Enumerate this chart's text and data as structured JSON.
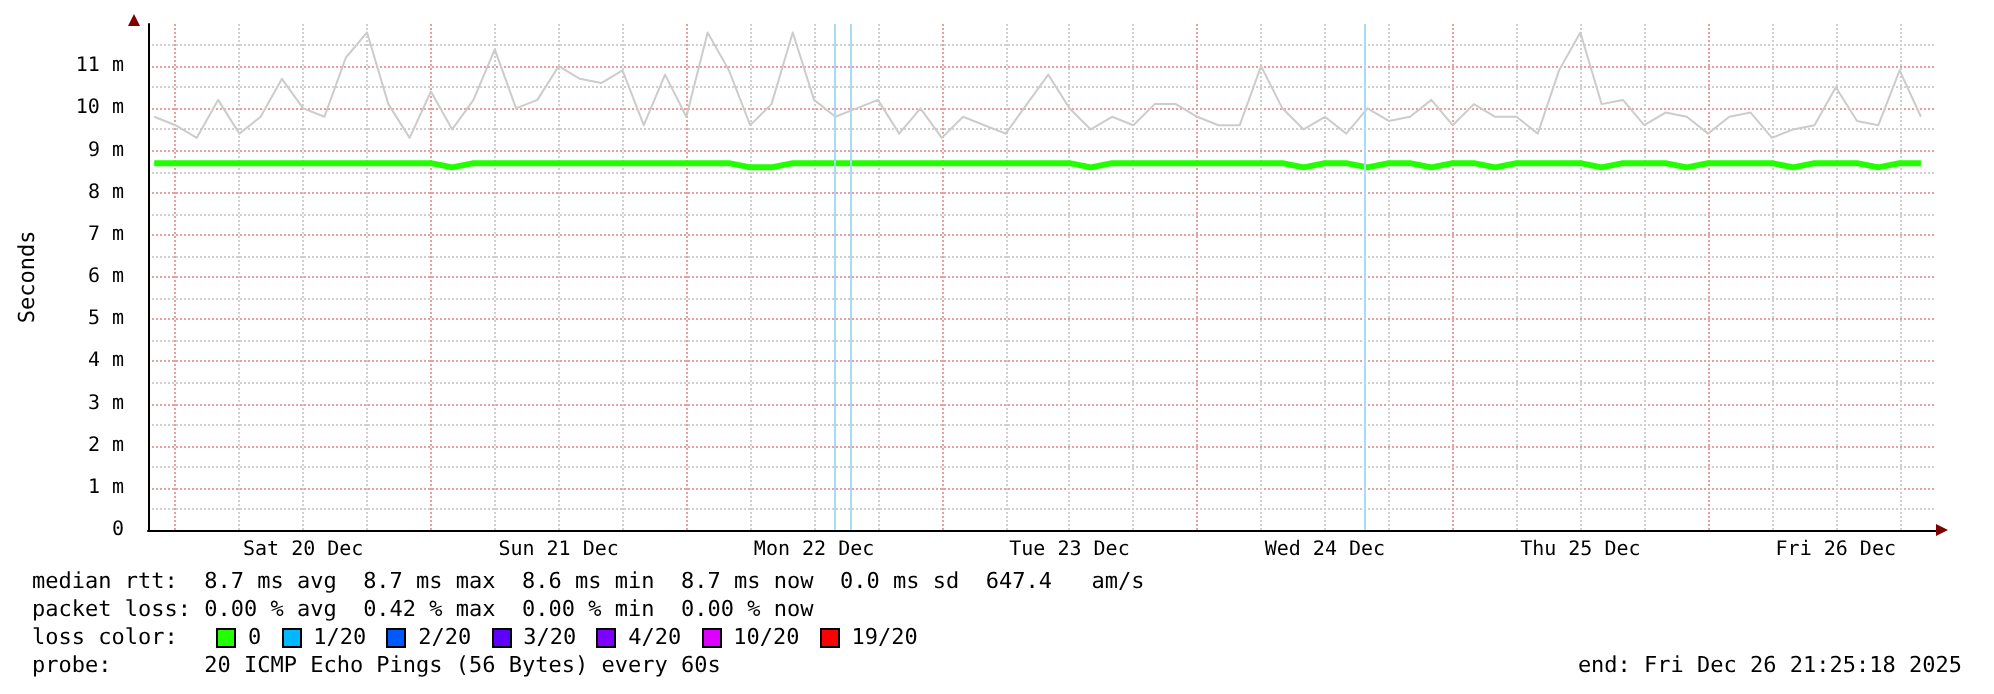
{
  "chart_data": {
    "type": "line",
    "ylabel": "Seconds",
    "legend_title": "loss color:",
    "legend": "bottom",
    "grid": true,
    "marker": "none",
    "annotations": [
      "median rtt:  8.7 ms avg  8.7 ms max  8.6 ms min  8.7 ms now  0.0 ms sd  647.4   am/s",
      "packet loss: 0.00 % avg  0.42 % max  0.00 % min  0.00 % now",
      "probe:       20 ICMP Echo Pings (56 Bytes) every 60s",
      "end: Fri Dec 26 21:25:18 2025"
    ],
    "xlim": [
      "2025-12-19T21:25",
      "2025-12-26T21:25"
    ],
    "xticks": [
      {
        "value": "2025-12-20T00:00",
        "label": null
      },
      {
        "value": "2025-12-20T06:00",
        "label": null
      },
      {
        "value": "2025-12-20T12:00",
        "label": "Sat 20 Dec"
      },
      {
        "value": "2025-12-20T18:00",
        "label": null
      },
      {
        "value": "2025-12-21T00:00",
        "label": null
      },
      {
        "value": "2025-12-21T06:00",
        "label": null
      },
      {
        "value": "2025-12-21T12:00",
        "label": "Sun 21 Dec"
      },
      {
        "value": "2025-12-21T18:00",
        "label": null
      },
      {
        "value": "2025-12-22T00:00",
        "label": null
      },
      {
        "value": "2025-12-22T06:00",
        "label": null
      },
      {
        "value": "2025-12-22T12:00",
        "label": "Mon 22 Dec"
      },
      {
        "value": "2025-12-22T18:00",
        "label": null
      },
      {
        "value": "2025-12-23T00:00",
        "label": null
      },
      {
        "value": "2025-12-23T06:00",
        "label": null
      },
      {
        "value": "2025-12-23T12:00",
        "label": "Tue 23 Dec"
      },
      {
        "value": "2025-12-23T18:00",
        "label": null
      },
      {
        "value": "2025-12-24T00:00",
        "label": null
      },
      {
        "value": "2025-12-24T06:00",
        "label": null
      },
      {
        "value": "2025-12-24T12:00",
        "label": "Wed 24 Dec"
      },
      {
        "value": "2025-12-24T18:00",
        "label": null
      },
      {
        "value": "2025-12-25T00:00",
        "label": null
      },
      {
        "value": "2025-12-25T06:00",
        "label": null
      },
      {
        "value": "2025-12-25T12:00",
        "label": "Thu 25 Dec"
      },
      {
        "value": "2025-12-25T18:00",
        "label": null
      },
      {
        "value": "2025-12-26T00:00",
        "label": null
      },
      {
        "value": "2025-12-26T06:00",
        "label": null
      },
      {
        "value": "2025-12-26T12:00",
        "label": "Fri 26 Dec"
      },
      {
        "value": "2025-12-26T18:00",
        "label": null
      }
    ],
    "ylim": [
      0,
      12
    ],
    "yticks": [
      {
        "value": 0,
        "label": "0"
      },
      {
        "value": 0.5,
        "label": null
      },
      {
        "value": 1,
        "label": "1 m"
      },
      {
        "value": 1.5,
        "label": null
      },
      {
        "value": 2,
        "label": "2 m"
      },
      {
        "value": 2.5,
        "label": null
      },
      {
        "value": 3,
        "label": "3 m"
      },
      {
        "value": 3.5,
        "label": null
      },
      {
        "value": 4,
        "label": "4 m"
      },
      {
        "value": 4.5,
        "label": null
      },
      {
        "value": 5,
        "label": "5 m"
      },
      {
        "value": 5.5,
        "label": null
      },
      {
        "value": 6,
        "label": "6 m"
      },
      {
        "value": 6.5,
        "label": null
      },
      {
        "value": 7,
        "label": "7 m"
      },
      {
        "value": 7.5,
        "label": null
      },
      {
        "value": 8,
        "label": "8 m"
      },
      {
        "value": 8.5,
        "label": null
      },
      {
        "value": 9,
        "label": "9 m"
      },
      {
        "value": 9.5,
        "label": null
      },
      {
        "value": 10,
        "label": "10 m"
      },
      {
        "value": 10.5,
        "label": null
      },
      {
        "value": 11,
        "label": "11 m"
      },
      {
        "value": 11.5,
        "label": null
      }
    ],
    "x": [
      "2025-12-19T22:00",
      "2025-12-20T00:00",
      "2025-12-20T02:00",
      "2025-12-20T04:00",
      "2025-12-20T06:00",
      "2025-12-20T08:00",
      "2025-12-20T10:00",
      "2025-12-20T12:00",
      "2025-12-20T14:00",
      "2025-12-20T16:00",
      "2025-12-20T18:00",
      "2025-12-20T20:00",
      "2025-12-20T22:00",
      "2025-12-21T00:00",
      "2025-12-21T02:00",
      "2025-12-21T04:00",
      "2025-12-21T06:00",
      "2025-12-21T08:00",
      "2025-12-21T10:00",
      "2025-12-21T12:00",
      "2025-12-21T14:00",
      "2025-12-21T16:00",
      "2025-12-21T18:00",
      "2025-12-21T20:00",
      "2025-12-21T22:00",
      "2025-12-22T00:00",
      "2025-12-22T02:00",
      "2025-12-22T04:00",
      "2025-12-22T06:00",
      "2025-12-22T08:00",
      "2025-12-22T10:00",
      "2025-12-22T12:00",
      "2025-12-22T14:00",
      "2025-12-22T16:00",
      "2025-12-22T18:00",
      "2025-12-22T20:00",
      "2025-12-22T22:00",
      "2025-12-23T00:00",
      "2025-12-23T02:00",
      "2025-12-23T04:00",
      "2025-12-23T06:00",
      "2025-12-23T08:00",
      "2025-12-23T10:00",
      "2025-12-23T12:00",
      "2025-12-23T14:00",
      "2025-12-23T16:00",
      "2025-12-23T18:00",
      "2025-12-23T20:00",
      "2025-12-23T22:00",
      "2025-12-24T00:00",
      "2025-12-24T02:00",
      "2025-12-24T04:00",
      "2025-12-24T06:00",
      "2025-12-24T08:00",
      "2025-12-24T10:00",
      "2025-12-24T12:00",
      "2025-12-24T14:00",
      "2025-12-24T16:00",
      "2025-12-24T18:00",
      "2025-12-24T20:00",
      "2025-12-24T22:00",
      "2025-12-25T00:00",
      "2025-12-25T02:00",
      "2025-12-25T04:00",
      "2025-12-25T06:00",
      "2025-12-25T08:00",
      "2025-12-25T10:00",
      "2025-12-25T12:00",
      "2025-12-25T14:00",
      "2025-12-25T16:00",
      "2025-12-25T18:00",
      "2025-12-25T20:00",
      "2025-12-25T22:00",
      "2025-12-26T00:00",
      "2025-12-26T02:00",
      "2025-12-26T04:00",
      "2025-12-26T06:00",
      "2025-12-26T08:00",
      "2025-12-26T10:00",
      "2025-12-26T12:00",
      "2025-12-26T14:00",
      "2025-12-26T16:00",
      "2025-12-26T18:00",
      "2025-12-26T20:00"
    ],
    "series": [
      {
        "color": "#cccccc",
        "values": [
          9.8,
          9.6,
          9.3,
          10.2,
          9.4,
          9.8,
          10.7,
          10.0,
          9.8,
          11.2,
          11.8,
          10.1,
          9.3,
          10.4,
          9.5,
          10.2,
          11.4,
          10.0,
          10.2,
          11.0,
          10.7,
          10.6,
          10.9,
          9.6,
          10.8,
          9.8,
          11.8,
          10.9,
          9.6,
          10.1,
          11.8,
          10.2,
          9.8,
          10.0,
          10.2,
          9.4,
          10.0,
          9.3,
          9.8,
          9.6,
          9.4,
          10.1,
          10.8,
          10.0,
          9.5,
          9.8,
          9.6,
          10.1,
          10.1,
          9.8,
          9.6,
          9.6,
          11.0,
          10.0,
          9.5,
          9.8,
          9.4,
          10.0,
          9.7,
          9.8,
          10.2,
          9.6,
          10.1,
          9.8,
          9.8,
          9.4,
          10.9,
          11.8,
          10.1,
          10.2,
          9.6,
          9.9,
          9.8,
          9.4,
          9.8,
          9.9,
          9.3,
          9.5,
          9.6,
          10.5,
          9.7,
          9.6,
          10.9,
          9.8
        ]
      },
      {
        "name": "0",
        "color": "#22ff00",
        "values": [
          8.7,
          8.7,
          8.7,
          8.7,
          8.7,
          8.7,
          8.7,
          8.7,
          8.7,
          8.7,
          8.7,
          8.7,
          8.7,
          8.7,
          8.6,
          8.7,
          8.7,
          8.7,
          8.7,
          8.7,
          8.7,
          8.7,
          8.7,
          8.7,
          8.7,
          8.7,
          8.7,
          8.7,
          8.6,
          8.6,
          8.7,
          8.7,
          8.7,
          8.7,
          8.7,
          8.7,
          8.7,
          8.7,
          8.7,
          8.7,
          8.7,
          8.7,
          8.7,
          8.7,
          8.6,
          8.7,
          8.7,
          8.7,
          8.7,
          8.7,
          8.7,
          8.7,
          8.7,
          8.7,
          8.6,
          8.7,
          8.7,
          8.6,
          8.7,
          8.7,
          8.6,
          8.7,
          8.7,
          8.6,
          8.7,
          8.7,
          8.7,
          8.7,
          8.6,
          8.7,
          8.7,
          8.7,
          8.6,
          8.7,
          8.7,
          8.7,
          8.7,
          8.6,
          8.7,
          8.7,
          8.7,
          8.6,
          8.7,
          8.7
        ]
      },
      {
        "name": "1/20",
        "color": "#00b8ff",
        "values": [
          null,
          null,
          null,
          null,
          null,
          null,
          null,
          null,
          null,
          null,
          null,
          null,
          null,
          null,
          null,
          null,
          null,
          null,
          null,
          null,
          null,
          null,
          null,
          null,
          null,
          null,
          null,
          null,
          null,
          null,
          null,
          null,
          null,
          null,
          null,
          null,
          null,
          null,
          null,
          null,
          null,
          null,
          null,
          null,
          null,
          null,
          null,
          null,
          null,
          null,
          null,
          null,
          null,
          null,
          null,
          null,
          null,
          null,
          null,
          null,
          null,
          null,
          null,
          null,
          null,
          null,
          null,
          null,
          null,
          null,
          null,
          null,
          null,
          null,
          null,
          null,
          null,
          null,
          null,
          null,
          null,
          null,
          null,
          null
        ]
      },
      {
        "name": "2/20",
        "color": "#0059ff",
        "values": [
          null,
          null,
          null,
          null,
          null,
          null,
          null,
          null,
          null,
          null,
          null,
          null,
          null,
          null,
          null,
          null,
          null,
          null,
          null,
          null,
          null,
          null,
          null,
          null,
          null,
          null,
          null,
          null,
          null,
          null,
          null,
          null,
          null,
          null,
          null,
          null,
          null,
          null,
          null,
          null,
          null,
          null,
          null,
          null,
          null,
          null,
          null,
          null,
          null,
          null,
          null,
          null,
          null,
          null,
          null,
          null,
          null,
          null,
          null,
          null,
          null,
          null,
          null,
          null,
          null,
          null,
          null,
          null,
          null,
          null,
          null,
          null,
          null,
          null,
          null,
          null,
          null,
          null,
          null,
          null,
          null,
          null,
          null,
          null
        ]
      },
      {
        "name": "3/20",
        "color": "#5e00ff",
        "values": [
          null,
          null,
          null,
          null,
          null,
          null,
          null,
          null,
          null,
          null,
          null,
          null,
          null,
          null,
          null,
          null,
          null,
          null,
          null,
          null,
          null,
          null,
          null,
          null,
          null,
          null,
          null,
          null,
          null,
          null,
          null,
          null,
          null,
          null,
          null,
          null,
          null,
          null,
          null,
          null,
          null,
          null,
          null,
          null,
          null,
          null,
          null,
          null,
          null,
          null,
          null,
          null,
          null,
          null,
          null,
          null,
          null,
          null,
          null,
          null,
          null,
          null,
          null,
          null,
          null,
          null,
          null,
          null,
          null,
          null,
          null,
          null,
          null,
          null,
          null,
          null,
          null,
          null,
          null,
          null,
          null,
          null,
          null,
          null
        ]
      },
      {
        "name": "4/20",
        "color": "#7e00ff",
        "values": [
          null,
          null,
          null,
          null,
          null,
          null,
          null,
          null,
          null,
          null,
          null,
          null,
          null,
          null,
          null,
          null,
          null,
          null,
          null,
          null,
          null,
          null,
          null,
          null,
          null,
          null,
          null,
          null,
          null,
          null,
          null,
          null,
          null,
          null,
          null,
          null,
          null,
          null,
          null,
          null,
          null,
          null,
          null,
          null,
          null,
          null,
          null,
          null,
          null,
          null,
          null,
          null,
          null,
          null,
          null,
          null,
          null,
          null,
          null,
          null,
          null,
          null,
          null,
          null,
          null,
          null,
          null,
          null,
          null,
          null,
          null,
          null,
          null,
          null,
          null,
          null,
          null,
          null,
          null,
          null,
          null,
          null,
          null,
          null
        ]
      },
      {
        "name": "10/20",
        "color": "#dd00ff",
        "values": [
          null,
          null,
          null,
          null,
          null,
          null,
          null,
          null,
          null,
          null,
          null,
          null,
          null,
          null,
          null,
          null,
          null,
          null,
          null,
          null,
          null,
          null,
          null,
          null,
          null,
          null,
          null,
          null,
          null,
          null,
          null,
          null,
          null,
          null,
          null,
          null,
          null,
          null,
          null,
          null,
          null,
          null,
          null,
          null,
          null,
          null,
          null,
          null,
          null,
          null,
          null,
          null,
          null,
          null,
          null,
          null,
          null,
          null,
          null,
          null,
          null,
          null,
          null,
          null,
          null,
          null,
          null,
          null,
          null,
          null,
          null,
          null,
          null,
          null,
          null,
          null,
          null,
          null,
          null,
          null,
          null,
          null,
          null,
          null
        ]
      },
      {
        "name": "19/20",
        "color": "#ff0000",
        "values": [
          null,
          null,
          null,
          null,
          null,
          null,
          null,
          null,
          null,
          null,
          null,
          null,
          null,
          null,
          null,
          null,
          null,
          null,
          null,
          null,
          null,
          null,
          null,
          null,
          null,
          null,
          null,
          null,
          null,
          null,
          null,
          null,
          null,
          null,
          null,
          null,
          null,
          null,
          null,
          null,
          null,
          null,
          null,
          null,
          null,
          null,
          null,
          null,
          null,
          null,
          null,
          null,
          null,
          null,
          null,
          null,
          null,
          null,
          null,
          null,
          null,
          null,
          null,
          null,
          null,
          null,
          null,
          null,
          null,
          null,
          null,
          null,
          null,
          null,
          null,
          null,
          null,
          null,
          null,
          null,
          null,
          null,
          null,
          null
        ]
      }
    ],
    "ref_lines": [
      {
        "axis": "x",
        "value": "2025-12-22T13:50",
        "color": "#a8dcf4"
      },
      {
        "axis": "x",
        "value": "2025-12-22T15:20",
        "color": "#a8dcf4"
      },
      {
        "axis": "x",
        "value": "2025-12-24T15:45",
        "color": "#a8dcf4"
      }
    ]
  }
}
